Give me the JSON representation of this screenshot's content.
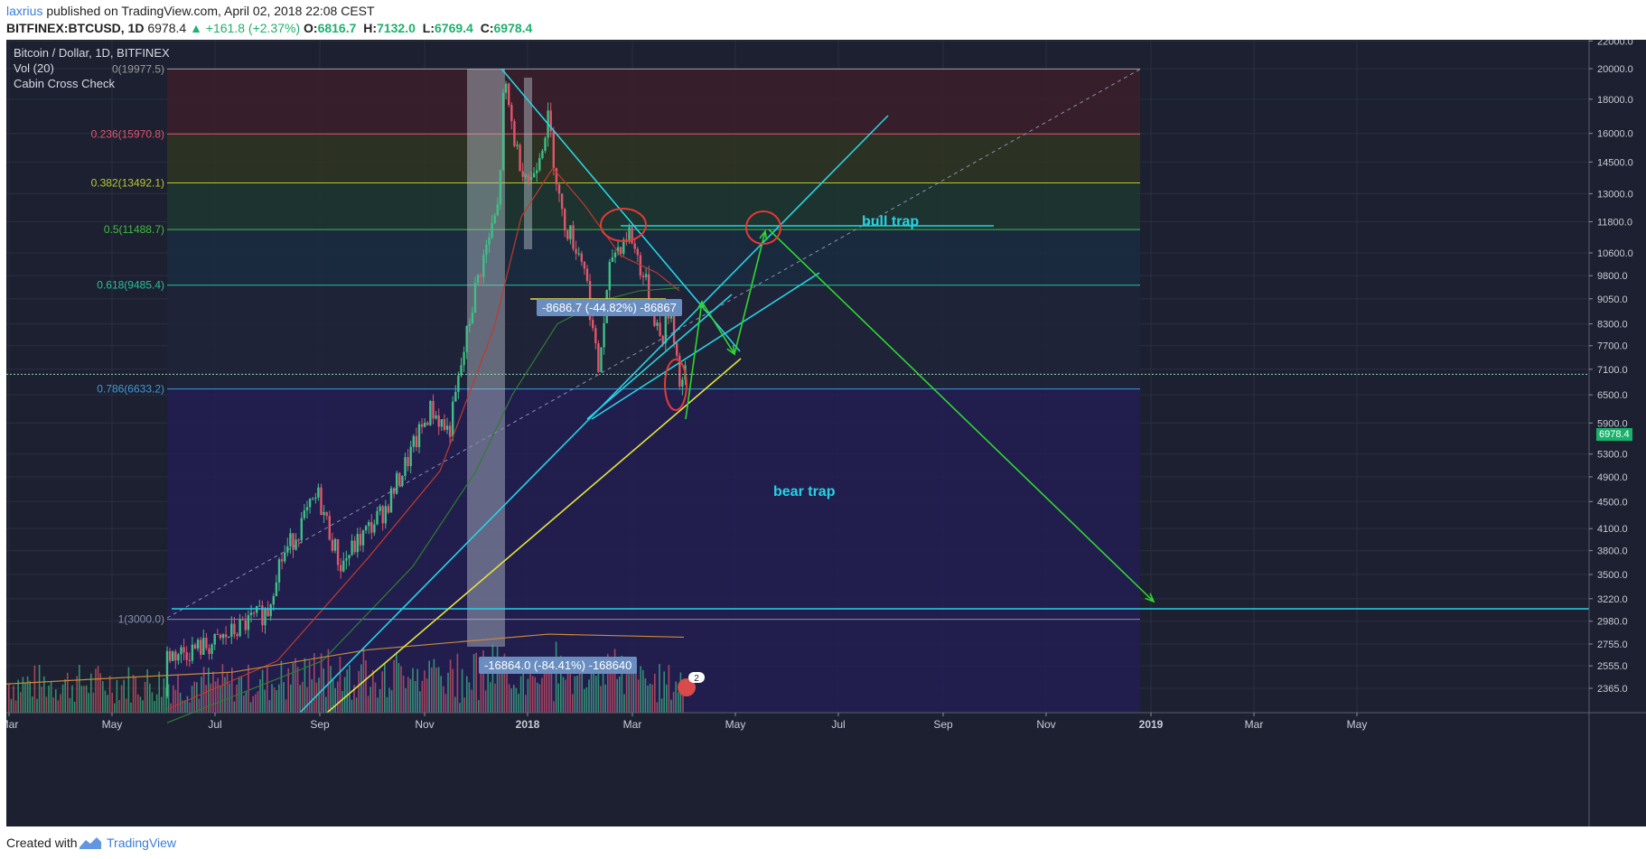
{
  "header": {
    "author": "laxrius",
    "published": "published on TradingView.com, April 02, 2018 22:08 CEST",
    "symbol": "BITFINEX:BTCUSD, 1D",
    "last": "6978.4",
    "change": "▲ +161.8 (+2.37%)",
    "o_label": "O:",
    "o": "6816.7",
    "h_label": "H:",
    "h": "7132.0",
    "l_label": "L:",
    "l": "6769.4",
    "c_label": "C:",
    "c": "6978.4"
  },
  "legend": {
    "title": "Bitcoin / Dollar, 1D, BITFINEX",
    "volume": "Vol (20)",
    "indicator": "Cabin Cross Check"
  },
  "footer": {
    "created_with": "Created with",
    "brand": "TradingView"
  },
  "annotations": {
    "bull_trap": "bull trap",
    "bear_trap": "bear trap",
    "measure_1": "-8686.7 (-44.82%) -86867",
    "measure_2": "-16864.0 (-84.41%) -168640"
  },
  "price_tag": "6978.4",
  "badge_count": "2",
  "colors": {
    "background": "#1c2030",
    "fib_1": "#3a1f2a",
    "fib_2": "#2f3422",
    "fib_3": "#1d3530",
    "fib_4": "#1b2b40",
    "fib_5": "#20243a",
    "fib_6": "#221e52",
    "up_candle": "#3fbf86",
    "down_candle": "#e0566b",
    "cyan_line": "#27d3e3",
    "yellow_line": "#e3e33a",
    "green_arrow": "#2fd62f"
  },
  "chart_data": {
    "type": "candlestick",
    "title": "Bitcoin / Dollar, 1D, BITFINEX",
    "price_scale": "log",
    "y_range": [
      2300,
      22500
    ],
    "y_ticks": [
      22000,
      20000,
      18000,
      16000,
      14500,
      13000,
      11800,
      10600,
      9800,
      9050,
      8300,
      7700,
      7100,
      6500,
      5900,
      5300,
      4900,
      4500,
      4100,
      3800,
      3500,
      3220,
      2980,
      2755,
      2555,
      2365
    ],
    "y_tick_labels": [
      "22000.0",
      "20000.0",
      "18000.0",
      "16000.0",
      "14500.0",
      "13000.0",
      "11800.0",
      "10600.0",
      "9800.0",
      "9050.0",
      "8300.0",
      "7700.0",
      "7100.0",
      "6500.0",
      "5900.0",
      "5300.0",
      "4900.0",
      "4500.0",
      "4100.0",
      "3800.0",
      "3500.0",
      "3220.0",
      "2980.0",
      "2755.0",
      "2555.0",
      "2365.0"
    ],
    "x_ticks": [
      "Mar",
      "May",
      "Jul",
      "Sep",
      "Nov",
      "2018",
      "Mar",
      "May",
      "Jul",
      "Sep",
      "Nov",
      "2019",
      "Mar",
      "May"
    ],
    "fib_levels": [
      {
        "label": "0(19977.5)",
        "value": 19977.5,
        "color": "#9b9b9b"
      },
      {
        "label": "0.236(15970.8)",
        "value": 15970.8,
        "color": "#e0566b"
      },
      {
        "label": "0.382(13492.1)",
        "value": 13492.1,
        "color": "#b7c82d"
      },
      {
        "label": "0.5(11488.7)",
        "value": 11488.7,
        "color": "#3fbf3f"
      },
      {
        "label": "0.618(9485.4)",
        "value": 9485.4,
        "color": "#26c29a"
      },
      {
        "label": "0.786(6633.2)",
        "value": 6633.2,
        "color": "#3f98d8"
      },
      {
        "label": "1(3000.0)",
        "value": 3000.0,
        "color": "#8a8fb0"
      }
    ],
    "candles_sample": [
      [
        "2017-06-01",
        2300,
        2600
      ],
      [
        "2017-07-01",
        2500,
        2800
      ],
      [
        "2017-08-01",
        2800,
        4300
      ],
      [
        "2017-09-01",
        4700,
        4300
      ],
      [
        "2017-10-01",
        4400,
        6400
      ],
      [
        "2017-11-01",
        6400,
        9900
      ],
      [
        "2017-12-01",
        9900,
        13800
      ],
      [
        "2017-12-17",
        18000,
        19200
      ],
      [
        "2018-01-01",
        13800,
        13500
      ],
      [
        "2018-02-06",
        8100,
        6900
      ],
      [
        "2018-02-20",
        10500,
        11400
      ],
      [
        "2018-03-01",
        10300,
        10900
      ],
      [
        "2018-03-20",
        8500,
        8900
      ],
      [
        "2018-04-01",
        6816.7,
        6978.4
      ]
    ],
    "last_price": 6978.4
  }
}
